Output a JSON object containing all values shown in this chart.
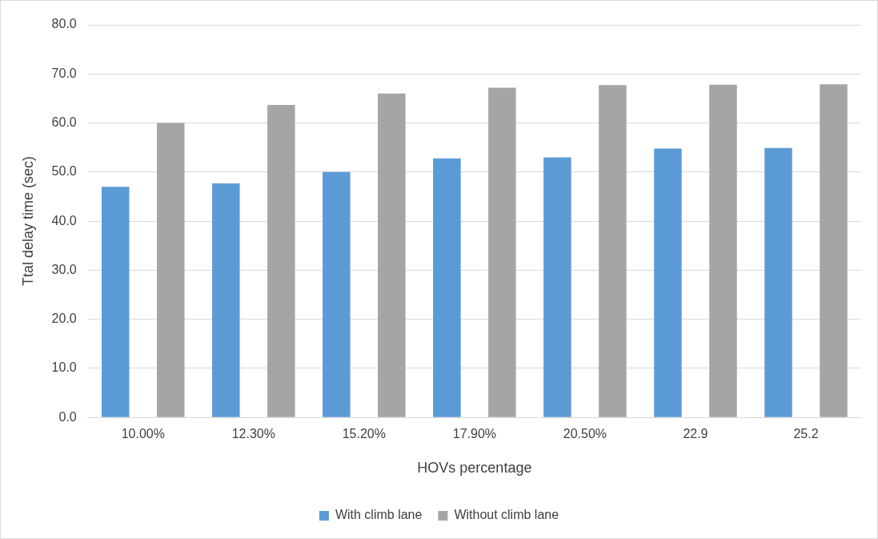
{
  "chart_data": {
    "type": "bar",
    "xlabel": "HOVs percentage",
    "ylabel": "Ttal delay time (sec)",
    "categories": [
      "10.00%",
      "12.30%",
      "15.20%",
      "17.90%",
      "20.50%",
      "22.9",
      "25.2"
    ],
    "series": [
      {
        "name": "With climb lane",
        "color": "#5b9bd5",
        "values": [
          47.0,
          47.7,
          50.0,
          52.8,
          53.0,
          54.8,
          54.9
        ]
      },
      {
        "name": "Without climb lane",
        "color": "#a5a5a5",
        "values": [
          60.0,
          63.7,
          66.0,
          67.2,
          67.7,
          67.8,
          67.9
        ]
      }
    ],
    "ylim": [
      0,
      80
    ],
    "yticks": [
      {
        "value": 0,
        "label": "0.0"
      },
      {
        "value": 10,
        "label": "10.0"
      },
      {
        "value": 20,
        "label": "20.0"
      },
      {
        "value": 30,
        "label": "30.0"
      },
      {
        "value": 40,
        "label": "40.0"
      },
      {
        "value": 50,
        "label": "50.0"
      },
      {
        "value": 60,
        "label": "60.0"
      },
      {
        "value": 70,
        "label": "70.0"
      },
      {
        "value": 80,
        "label": "80.0"
      }
    ],
    "grid": "y",
    "legend": "bottom"
  }
}
